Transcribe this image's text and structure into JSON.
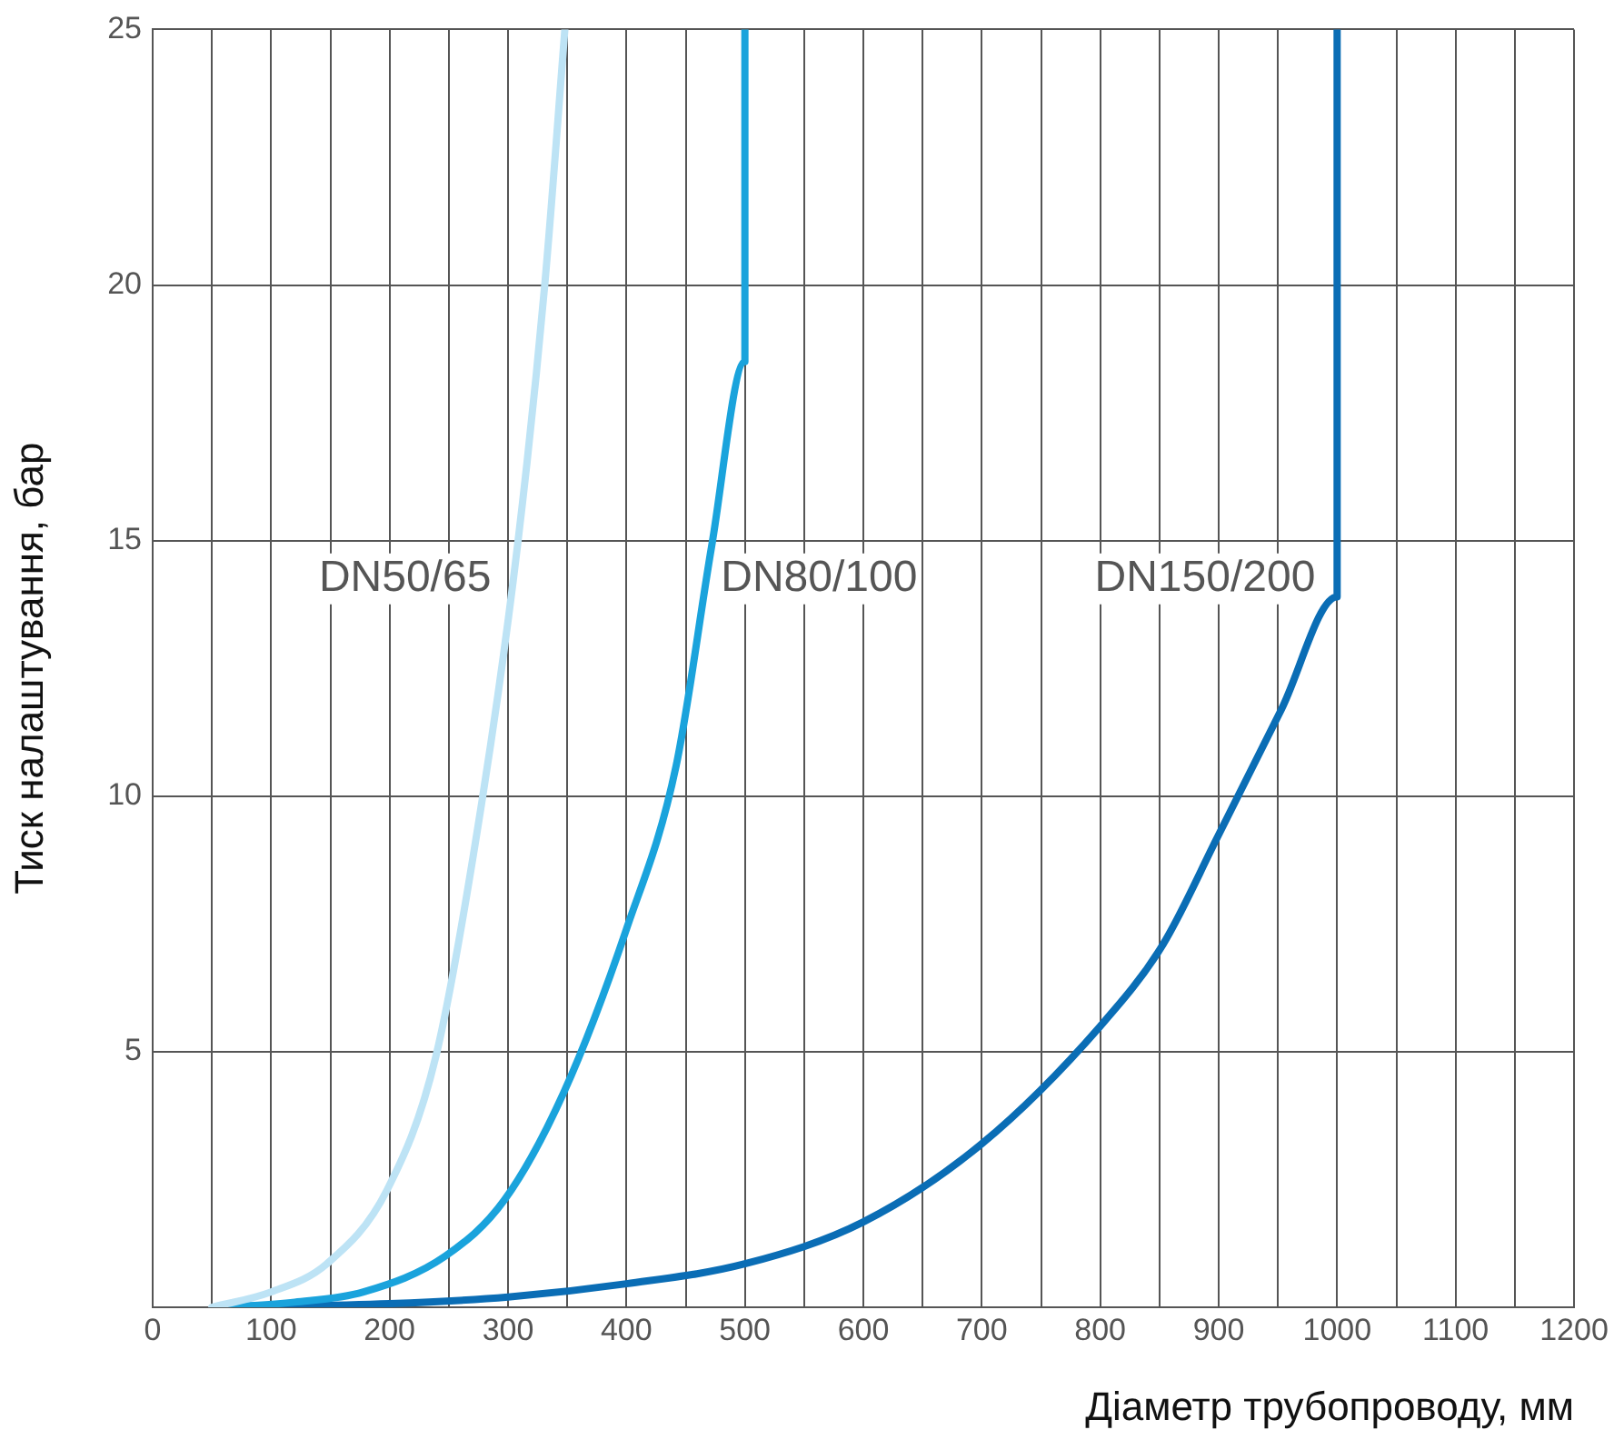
{
  "chart_data": {
    "type": "line",
    "xlabel": "Діаметр трубопроводу, мм",
    "ylabel": "Тиск налаштування, бар",
    "xlim": [
      0,
      1200
    ],
    "ylim": [
      0,
      25
    ],
    "xticks": [
      0,
      {
        "value": 50,
        "label": null
      },
      100,
      {
        "value": 150,
        "label": null
      },
      200,
      {
        "value": 250,
        "label": null
      },
      300,
      {
        "value": 350,
        "label": null
      },
      400,
      {
        "value": 450,
        "label": null
      },
      500,
      {
        "value": 550,
        "label": null
      },
      600,
      {
        "value": 650,
        "label": null
      },
      700,
      {
        "value": 750,
        "label": null
      },
      800,
      {
        "value": 850,
        "label": null
      },
      900,
      {
        "value": 950,
        "label": null
      },
      1000,
      {
        "value": 1050,
        "label": null
      },
      1100,
      {
        "value": 1150,
        "label": null
      },
      1200
    ],
    "yticks": [
      {
        "value": 0,
        "label": null
      },
      5,
      10,
      15,
      20,
      25
    ],
    "grid": true,
    "legend": false,
    "marker": "none",
    "line_style": "solid",
    "series": [
      {
        "name": "DN50/65",
        "color": "#bde3f5",
        "x": [
          50,
          100,
          147,
          198,
          239,
          278,
          308,
          331,
          348
        ],
        "values": [
          0,
          0.3,
          0.85,
          2.3,
          4.9,
          9.9,
          14.9,
          20,
          25
        ]
      },
      {
        "name": "DN80/100",
        "color": "#1aa3dc",
        "x": [
          60,
          120,
          178,
          247,
          297,
          347,
          400,
          442,
          472,
          500,
          500
        ],
        "values": [
          0,
          0.1,
          0.3,
          1.0,
          2.1,
          4.2,
          7.4,
          10.6,
          14.9,
          18.5,
          25
        ]
      },
      {
        "name": "DN150/200",
        "color": "#0a6db5",
        "x": [
          70,
          200,
          300,
          400,
          500,
          600,
          700,
          800,
          853,
          899,
          953,
          1000,
          1000
        ],
        "values": [
          0,
          0.07,
          0.2,
          0.46,
          0.85,
          1.67,
          3.2,
          5.5,
          7.1,
          9.2,
          11.7,
          13.9,
          25
        ]
      }
    ]
  }
}
